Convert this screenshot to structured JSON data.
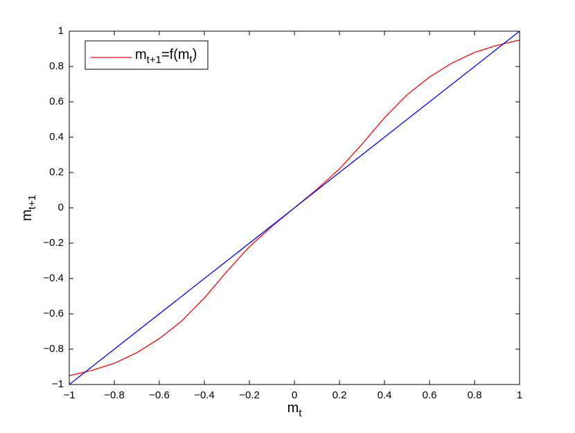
{
  "chart_data": {
    "type": "line",
    "x_label": "m_t",
    "y_label": "m_{t+1}",
    "xlim": [
      -1,
      1
    ],
    "ylim": [
      -1,
      1
    ],
    "xticks": [
      {
        "value": -1,
        "label": "−1"
      },
      {
        "value": -0.8,
        "label": "−0.8"
      },
      {
        "value": -0.6,
        "label": "−0.6"
      },
      {
        "value": -0.4,
        "label": "−0.4"
      },
      {
        "value": -0.2,
        "label": "−0.2"
      },
      0,
      0.2,
      0.4,
      0.6,
      0.8,
      1
    ],
    "yticks": [
      {
        "value": -1,
        "label": "−1"
      },
      {
        "value": -0.8,
        "label": "−0.8"
      },
      {
        "value": -0.6,
        "label": "−0.6"
      },
      {
        "value": -0.4,
        "label": "−0.4"
      },
      {
        "value": -0.2,
        "label": "−0.2"
      },
      0,
      0.2,
      0.4,
      0.6,
      0.8,
      1
    ],
    "legend_position": "upper left",
    "series": [
      {
        "name": "m_{t+1}=f(m_t)",
        "color": "#ff0000",
        "x": [
          -1,
          -0.9,
          -0.8,
          -0.7,
          -0.6,
          -0.5,
          -0.4,
          -0.3,
          -0.2,
          -0.1,
          0,
          0.1,
          0.2,
          0.3,
          0.4,
          0.5,
          0.6,
          0.7,
          0.8,
          0.9,
          1
        ],
        "values": [
          -0.95,
          -0.92,
          -0.88,
          -0.82,
          -0.74,
          -0.64,
          -0.51,
          -0.36,
          -0.22,
          -0.105,
          0,
          0.105,
          0.22,
          0.36,
          0.51,
          0.64,
          0.74,
          0.82,
          0.88,
          0.92,
          0.95
        ]
      },
      {
        "color": "#0000ff",
        "x": [
          -1,
          1
        ],
        "values": [
          -1,
          1
        ]
      }
    ]
  }
}
